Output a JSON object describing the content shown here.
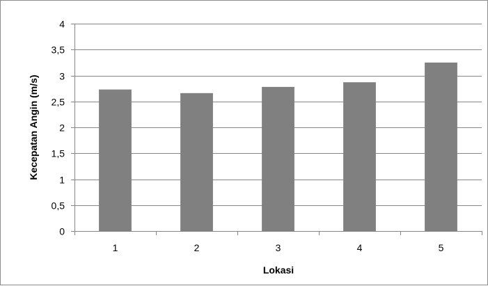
{
  "chart_data": {
    "type": "bar",
    "title": "",
    "xlabel": "Lokasi",
    "ylabel": "Kecepatan Angin (m/s)",
    "categories": [
      "1",
      "2",
      "3",
      "4",
      "5"
    ],
    "values": [
      2.73,
      2.66,
      2.78,
      2.87,
      3.25
    ],
    "ylim": [
      0,
      4
    ],
    "yticks": [
      0,
      0.5,
      1,
      1.5,
      2,
      2.5,
      3,
      3.5,
      4
    ],
    "ytick_labels": [
      "0",
      "0,5",
      "1",
      "1,5",
      "2",
      "2,5",
      "3",
      "3,5",
      "4"
    ],
    "grid": true,
    "legend": "none",
    "colors": {
      "bar": "#808080",
      "grid": "#868686",
      "axis": "#868686",
      "frame": "#8c8c8c"
    }
  }
}
